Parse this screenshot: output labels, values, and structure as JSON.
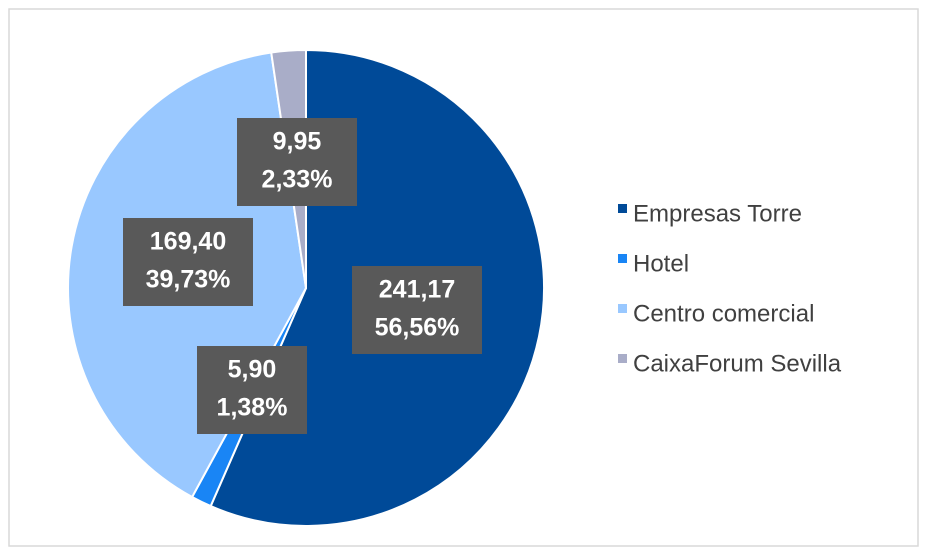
{
  "chart_data": {
    "type": "pie",
    "categories": [
      "Empresas Torre",
      "Hotel",
      "Centro comercial",
      "CaixaForum Sevilla"
    ],
    "values": [
      241.17,
      5.9,
      169.4,
      9.95
    ],
    "value_labels": [
      "241,17",
      "5,90",
      "169,40",
      "9,95"
    ],
    "percents": [
      56.56,
      1.38,
      39.73,
      2.33
    ],
    "percent_labels": [
      "56,56%",
      "1,38%",
      "39,73%",
      "2,33%"
    ],
    "colors": [
      "#004a98",
      "#1985f5",
      "#99c8ff",
      "#a9adc8"
    ],
    "legend": "right"
  }
}
